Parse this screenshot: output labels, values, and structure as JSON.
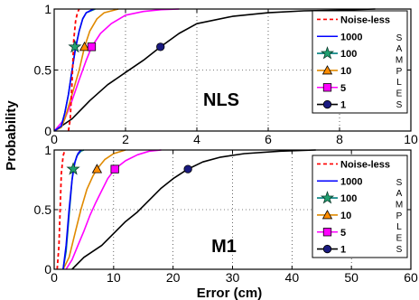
{
  "figure": {
    "ylabel": "Probability",
    "xlabel": "Error (cm)"
  },
  "chart_data": [
    {
      "type": "line",
      "panel_label": "NLS",
      "xlim": [
        0,
        10
      ],
      "ylim": [
        0,
        1
      ],
      "xticks": [
        "0",
        "2",
        "4",
        "6",
        "8",
        "10"
      ],
      "yticks": [
        "0",
        "0.5",
        "1"
      ],
      "grid": true,
      "legend_position": "top-right",
      "legend_group_label": "SAMPLES",
      "series": [
        {
          "name": "Noise-less",
          "color": "#ff0000",
          "style": "dashed",
          "marker": "none",
          "points": [
            [
              0.4,
              0
            ],
            [
              0.45,
              0.1
            ],
            [
              0.5,
              0.4
            ],
            [
              0.55,
              0.75
            ],
            [
              0.6,
              0.9
            ],
            [
              0.65,
              0.97
            ],
            [
              0.7,
              1
            ]
          ]
        },
        {
          "name": "1000",
          "color": "#0000ff",
          "style": "solid",
          "marker": "none",
          "points": [
            [
              0,
              0
            ],
            [
              0.2,
              0.04
            ],
            [
              0.3,
              0.15
            ],
            [
              0.4,
              0.3
            ],
            [
              0.5,
              0.5
            ],
            [
              0.6,
              0.68
            ],
            [
              0.7,
              0.82
            ],
            [
              0.8,
              0.92
            ],
            [
              0.9,
              0.97
            ],
            [
              1.1,
              1
            ]
          ]
        },
        {
          "name": "100",
          "color": "#008080",
          "style": "solid",
          "marker": "star",
          "marker_color": "#20a070",
          "marker_at": [
            0.58,
            0.69
          ],
          "points": [
            [
              0,
              0
            ],
            [
              0.2,
              0.04
            ],
            [
              0.3,
              0.15
            ],
            [
              0.4,
              0.3
            ],
            [
              0.5,
              0.5
            ],
            [
              0.6,
              0.69
            ],
            [
              0.7,
              0.82
            ],
            [
              0.8,
              0.92
            ],
            [
              0.9,
              0.97
            ],
            [
              1.15,
              1
            ]
          ]
        },
        {
          "name": "10",
          "color": "#e08a00",
          "style": "solid",
          "marker": "triangle",
          "marker_color": "#ff8c00",
          "marker_at": [
            0.85,
            0.69
          ],
          "points": [
            [
              0,
              0
            ],
            [
              0.2,
              0.03
            ],
            [
              0.3,
              0.1
            ],
            [
              0.5,
              0.3
            ],
            [
              0.7,
              0.5
            ],
            [
              0.85,
              0.69
            ],
            [
              1.0,
              0.82
            ],
            [
              1.2,
              0.92
            ],
            [
              1.4,
              0.97
            ],
            [
              1.8,
              1
            ]
          ]
        },
        {
          "name": "5",
          "color": "#ff00ff",
          "style": "solid",
          "marker": "square",
          "marker_color": "#ff00ff",
          "marker_at": [
            1.05,
            0.69
          ],
          "points": [
            [
              0,
              0
            ],
            [
              0.3,
              0.1
            ],
            [
              0.5,
              0.25
            ],
            [
              0.7,
              0.42
            ],
            [
              0.9,
              0.58
            ],
            [
              1.05,
              0.69
            ],
            [
              1.3,
              0.8
            ],
            [
              1.6,
              0.88
            ],
            [
              2.0,
              0.95
            ],
            [
              2.5,
              0.98
            ],
            [
              3.0,
              0.995
            ],
            [
              3.5,
              1
            ]
          ]
        },
        {
          "name": "1",
          "color": "#000000",
          "style": "solid",
          "marker": "circle",
          "marker_color": "#1a1a80",
          "marker_at": [
            2.98,
            0.69
          ],
          "points": [
            [
              0,
              0
            ],
            [
              0.5,
              0.1
            ],
            [
              1.0,
              0.25
            ],
            [
              1.5,
              0.38
            ],
            [
              2.0,
              0.48
            ],
            [
              2.5,
              0.58
            ],
            [
              2.98,
              0.69
            ],
            [
              3.5,
              0.8
            ],
            [
              4.0,
              0.88
            ],
            [
              5.0,
              0.94
            ],
            [
              6.0,
              0.97
            ],
            [
              7.0,
              0.985
            ],
            [
              8.0,
              0.99
            ],
            [
              9.0,
              1
            ]
          ]
        }
      ]
    },
    {
      "type": "line",
      "panel_label": "M1",
      "xlim": [
        0,
        60
      ],
      "ylim": [
        0,
        1
      ],
      "xticks": [
        "0",
        "10",
        "20",
        "30",
        "40",
        "50",
        "60"
      ],
      "yticks": [
        "0",
        "0.5",
        "1"
      ],
      "grid": true,
      "legend_position": "top-right",
      "legend_group_label": "SAMPLES",
      "series": [
        {
          "name": "Noise-less",
          "color": "#ff0000",
          "style": "dashed",
          "marker": "none",
          "points": [
            [
              0.5,
              0
            ],
            [
              0.8,
              0.2
            ],
            [
              1.0,
              0.5
            ],
            [
              1.2,
              0.8
            ],
            [
              1.5,
              0.95
            ],
            [
              1.8,
              1
            ]
          ]
        },
        {
          "name": "1000",
          "color": "#0000ff",
          "style": "solid",
          "marker": "none",
          "points": [
            [
              1.5,
              0
            ],
            [
              2.0,
              0.2
            ],
            [
              2.5,
              0.5
            ],
            [
              3.0,
              0.75
            ],
            [
              3.5,
              0.9
            ],
            [
              4.0,
              0.97
            ],
            [
              4.5,
              1
            ]
          ]
        },
        {
          "name": "100",
          "color": "#008080",
          "style": "solid",
          "marker": "star",
          "marker_color": "#20a070",
          "marker_at": [
            3.2,
            0.84
          ],
          "points": [
            [
              1.5,
              0
            ],
            [
              2.0,
              0.15
            ],
            [
              2.5,
              0.45
            ],
            [
              3.0,
              0.75
            ],
            [
              3.2,
              0.84
            ],
            [
              3.8,
              0.95
            ],
            [
              4.5,
              0.99
            ],
            [
              5.0,
              1
            ]
          ]
        },
        {
          "name": "10",
          "color": "#e08a00",
          "style": "solid",
          "marker": "triangle",
          "marker_color": "#ff8c00",
          "marker_at": [
            7.2,
            0.84
          ],
          "points": [
            [
              1.5,
              0
            ],
            [
              2.5,
              0.1
            ],
            [
              3.5,
              0.3
            ],
            [
              4.5,
              0.5
            ],
            [
              5.5,
              0.67
            ],
            [
              6.5,
              0.78
            ],
            [
              7.2,
              0.84
            ],
            [
              8.5,
              0.92
            ],
            [
              10.0,
              0.97
            ],
            [
              12.0,
              1
            ]
          ]
        },
        {
          "name": "5",
          "color": "#ff00ff",
          "style": "solid",
          "marker": "square",
          "marker_color": "#ff00ff",
          "marker_at": [
            10.2,
            0.84
          ],
          "points": [
            [
              2.0,
              0
            ],
            [
              3.0,
              0.08
            ],
            [
              4.0,
              0.2
            ],
            [
              5.0,
              0.32
            ],
            [
              6.0,
              0.45
            ],
            [
              7.0,
              0.56
            ],
            [
              8.0,
              0.66
            ],
            [
              9.0,
              0.76
            ],
            [
              10.2,
              0.84
            ],
            [
              12.0,
              0.91
            ],
            [
              14.0,
              0.96
            ],
            [
              16.0,
              0.99
            ],
            [
              18.0,
              1
            ]
          ]
        },
        {
          "name": "1",
          "color": "#000000",
          "style": "solid",
          "marker": "circle",
          "marker_color": "#1a1a80",
          "marker_at": [
            22.5,
            0.84
          ],
          "points": [
            [
              3.0,
              0
            ],
            [
              5.0,
              0.1
            ],
            [
              8.0,
              0.2
            ],
            [
              10.0,
              0.3
            ],
            [
              12.0,
              0.4
            ],
            [
              14.0,
              0.48
            ],
            [
              16.0,
              0.58
            ],
            [
              18.0,
              0.68
            ],
            [
              20.0,
              0.76
            ],
            [
              22.5,
              0.84
            ],
            [
              25.0,
              0.9
            ],
            [
              28.0,
              0.94
            ],
            [
              32.0,
              0.97
            ],
            [
              38.0,
              0.99
            ],
            [
              44.0,
              1
            ]
          ]
        }
      ]
    }
  ]
}
